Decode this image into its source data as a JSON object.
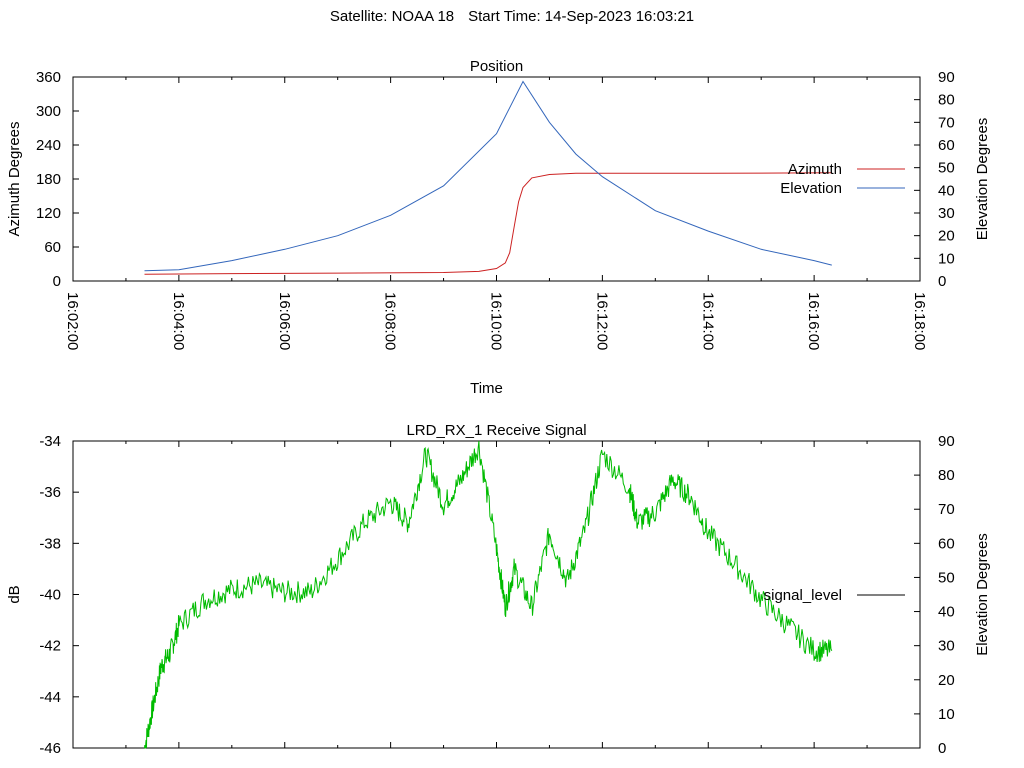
{
  "header": {
    "satellite": "Satellite: NOAA 18",
    "start_time": "Start Time: 14-Sep-2023 16:03:21"
  },
  "colors": {
    "azimuth": "#cc2222",
    "elevation": "#3366bb",
    "signal": "#00bb00",
    "signal_legend": "#000000",
    "axis": "#000000"
  },
  "chart_data": [
    {
      "type": "line",
      "title": "Position",
      "xlabel": "Time",
      "ylabel": "Azimuth Degrees",
      "y2label": "Elevation Degrees",
      "xlim": [
        "16:02:00",
        "16:18:00"
      ],
      "ylim": [
        0,
        360
      ],
      "y2lim": [
        0,
        90
      ],
      "x_ticks": [
        "16:02:00",
        "16:04:00",
        "16:06:00",
        "16:08:00",
        "16:10:00",
        "16:12:00",
        "16:14:00",
        "16:16:00",
        "16:18:00"
      ],
      "y_ticks": [
        0,
        60,
        120,
        180,
        240,
        300,
        360
      ],
      "y2_ticks": [
        0,
        10,
        20,
        30,
        40,
        50,
        60,
        70,
        80,
        90
      ],
      "legend_position": "right",
      "series": [
        {
          "name": "Azimuth",
          "axis": "y",
          "x": [
            "16:03:21",
            "16:05:00",
            "16:07:00",
            "16:09:00",
            "16:09:40",
            "16:10:00",
            "16:10:10",
            "16:10:15",
            "16:10:20",
            "16:10:25",
            "16:10:30",
            "16:10:40",
            "16:11:00",
            "16:11:30",
            "16:12:00",
            "16:14:00",
            "16:16:20"
          ],
          "values": [
            12,
            13,
            14,
            15,
            17,
            22,
            32,
            50,
            95,
            140,
            165,
            182,
            188,
            190,
            190,
            190,
            191
          ]
        },
        {
          "name": "Elevation",
          "axis": "y2",
          "x": [
            "16:03:21",
            "16:04:00",
            "16:05:00",
            "16:06:00",
            "16:07:00",
            "16:08:00",
            "16:09:00",
            "16:10:00",
            "16:10:30",
            "16:11:00",
            "16:11:30",
            "16:12:00",
            "16:13:00",
            "16:14:00",
            "16:15:00",
            "16:16:00",
            "16:16:20"
          ],
          "values": [
            4.5,
            5,
            9,
            14,
            20,
            29,
            42,
            65,
            88,
            70,
            56,
            46,
            31,
            22,
            14,
            9,
            7
          ]
        }
      ]
    },
    {
      "type": "line",
      "title": "LRD_RX_1 Receive Signal",
      "ylabel": "dB",
      "y2label": "Elevation Degrees",
      "xlim": [
        "16:02:00",
        "16:18:00"
      ],
      "ylim": [
        -46,
        -34
      ],
      "y2lim": [
        0,
        90
      ],
      "y_ticks": [
        -46,
        -44,
        -42,
        -40,
        -38,
        -36,
        -34
      ],
      "y2_ticks": [
        0,
        10,
        20,
        30,
        40,
        50,
        60,
        70,
        80,
        90
      ],
      "legend_position": "right",
      "series": [
        {
          "name": "signal_level",
          "x": [
            "16:03:21",
            "16:03:30",
            "16:03:40",
            "16:03:50",
            "16:04:00",
            "16:04:30",
            "16:05:00",
            "16:05:30",
            "16:06:00",
            "16:06:30",
            "16:07:00",
            "16:07:30",
            "16:08:00",
            "16:08:20",
            "16:08:40",
            "16:09:00",
            "16:09:20",
            "16:09:40",
            "16:10:00",
            "16:10:10",
            "16:10:20",
            "16:10:40",
            "16:11:00",
            "16:11:20",
            "16:11:40",
            "16:12:00",
            "16:12:30",
            "16:12:40",
            "16:13:00",
            "16:13:20",
            "16:13:40",
            "16:14:00",
            "16:14:30",
            "16:15:00",
            "16:15:30",
            "16:16:00",
            "16:16:20"
          ],
          "values": [
            -46,
            -44.5,
            -42.8,
            -42.3,
            -41.2,
            -40.2,
            -39.8,
            -39.6,
            -39.9,
            -39.9,
            -38.6,
            -37.2,
            -36.4,
            -37.2,
            -34.5,
            -36.5,
            -35.5,
            -34.2,
            -38.2,
            -40.5,
            -39,
            -40.5,
            -37.6,
            -39.5,
            -37.5,
            -34.5,
            -35.8,
            -37.2,
            -36.8,
            -35.5,
            -36.2,
            -37.6,
            -38.8,
            -40.2,
            -41.2,
            -42.2,
            -42.2
          ]
        }
      ]
    }
  ]
}
